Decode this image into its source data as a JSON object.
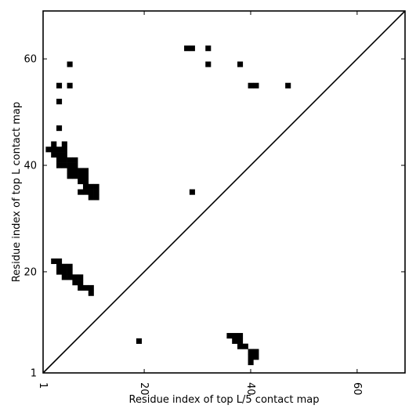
{
  "chart_data": {
    "type": "heatmap",
    "xlabel": "Residue index of top L/5 contact map",
    "ylabel": "Residue index of top L contact map",
    "xlim": [
      1,
      69
    ],
    "ylim": [
      1,
      69
    ],
    "x_ticks": [
      {
        "value": 1,
        "label": "1"
      },
      {
        "value": 20,
        "label": "20"
      },
      {
        "value": 40,
        "label": "40"
      },
      {
        "value": 60,
        "label": "60"
      }
    ],
    "y_ticks": [
      {
        "value": 1,
        "label": "1"
      },
      {
        "value": 20,
        "label": "20"
      },
      {
        "value": 40,
        "label": "40"
      },
      {
        "value": 60,
        "label": "60"
      }
    ],
    "diagonal": {
      "from": [
        1,
        1
      ],
      "to": [
        69,
        69
      ]
    },
    "mark_color": "#000000",
    "frame_color": "#000000",
    "background_color": "#ffffff",
    "grid": false,
    "contacts": [
      [
        28,
        62
      ],
      [
        29,
        62
      ],
      [
        32,
        62
      ],
      [
        6,
        59
      ],
      [
        32,
        59
      ],
      [
        38,
        59
      ],
      [
        4,
        55
      ],
      [
        6,
        55
      ],
      [
        40,
        55
      ],
      [
        41,
        55
      ],
      [
        47,
        55
      ],
      [
        4,
        52
      ],
      [
        4,
        47
      ],
      [
        3,
        44
      ],
      [
        5,
        44
      ],
      [
        2,
        43
      ],
      [
        3,
        43
      ],
      [
        4,
        43
      ],
      [
        5,
        43
      ],
      [
        3,
        42
      ],
      [
        4,
        42
      ],
      [
        5,
        42
      ],
      [
        4,
        41
      ],
      [
        5,
        41
      ],
      [
        6,
        41
      ],
      [
        7,
        41
      ],
      [
        4,
        40
      ],
      [
        5,
        40
      ],
      [
        6,
        40
      ],
      [
        7,
        40
      ],
      [
        6,
        39
      ],
      [
        7,
        39
      ],
      [
        8,
        39
      ],
      [
        9,
        39
      ],
      [
        6,
        38
      ],
      [
        7,
        38
      ],
      [
        8,
        38
      ],
      [
        9,
        38
      ],
      [
        8,
        37
      ],
      [
        9,
        37
      ],
      [
        9,
        36
      ],
      [
        10,
        36
      ],
      [
        11,
        36
      ],
      [
        8,
        35
      ],
      [
        9,
        35
      ],
      [
        10,
        35
      ],
      [
        11,
        35
      ],
      [
        29,
        35
      ],
      [
        10,
        34
      ],
      [
        11,
        34
      ],
      [
        3,
        22
      ],
      [
        4,
        22
      ],
      [
        4,
        21
      ],
      [
        5,
        21
      ],
      [
        6,
        21
      ],
      [
        4,
        20
      ],
      [
        5,
        20
      ],
      [
        6,
        20
      ],
      [
        5,
        19
      ],
      [
        6,
        19
      ],
      [
        7,
        19
      ],
      [
        8,
        19
      ],
      [
        7,
        18
      ],
      [
        8,
        18
      ],
      [
        8,
        17
      ],
      [
        9,
        17
      ],
      [
        10,
        17
      ],
      [
        10,
        16
      ],
      [
        19,
        7
      ],
      [
        36,
        8
      ],
      [
        37,
        8
      ],
      [
        38,
        8
      ],
      [
        37,
        7
      ],
      [
        38,
        7
      ],
      [
        38,
        6
      ],
      [
        39,
        6
      ],
      [
        40,
        5
      ],
      [
        41,
        5
      ],
      [
        40,
        4
      ],
      [
        41,
        4
      ],
      [
        40,
        3
      ]
    ]
  }
}
